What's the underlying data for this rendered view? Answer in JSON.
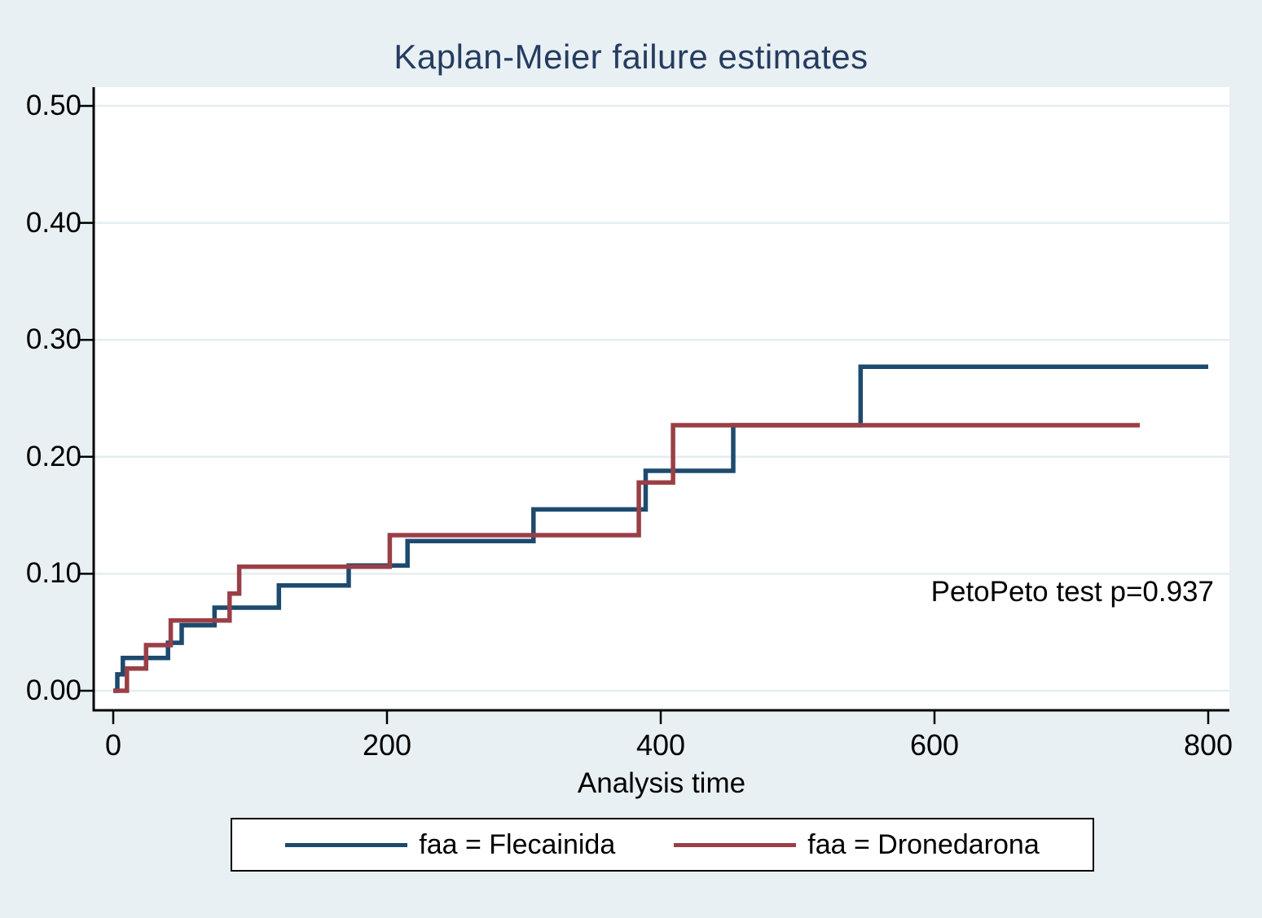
{
  "title": "Kaplan-Meier failure estimates",
  "annotation": "PetoPeto test p=0.937",
  "axes": {
    "x": {
      "label": "Analysis time",
      "tick_labels": [
        "0",
        "200",
        "400",
        "600",
        "800"
      ]
    },
    "y": {
      "tick_labels": [
        "0.00",
        "0.10",
        "0.20",
        "0.30",
        "0.40",
        "0.50"
      ]
    }
  },
  "legend": {
    "items": [
      {
        "label": "faa = Flecainida",
        "color": "#1d4a6e"
      },
      {
        "label": "faa = Dronedarona",
        "color": "#9a3f46"
      }
    ]
  },
  "colors": {
    "background": "#e9f0f3",
    "plot_background": "#ffffff",
    "gridline": "#e4edf0",
    "axis": "#000000",
    "title": "#253c61",
    "flecainida": "#1d4a6e",
    "dronedarona": "#9a3f46"
  },
  "chart_data": {
    "type": "line",
    "subtype": "step",
    "title": "Kaplan-Meier failure estimates",
    "xlabel": "Analysis time",
    "ylabel": "",
    "xlim": [
      0,
      800
    ],
    "ylim": [
      0,
      0.5
    ],
    "x_ticks": [
      0,
      200,
      400,
      600,
      800
    ],
    "y_ticks": [
      0,
      0.1,
      0.2,
      0.3,
      0.4,
      0.5
    ],
    "grid": true,
    "legend_position": "bottom",
    "annotation": "PetoPeto test p=0.937",
    "series": [
      {
        "name": "faa = Flecainida",
        "color": "#1d4a6e",
        "end_x": 800,
        "points": [
          [
            0,
            0
          ],
          [
            3,
            0.014
          ],
          [
            7,
            0.028
          ],
          [
            40,
            0.041
          ],
          [
            50,
            0.056
          ],
          [
            74,
            0.071
          ],
          [
            121,
            0.09
          ],
          [
            172,
            0.107
          ],
          [
            215,
            0.128
          ],
          [
            307,
            0.155
          ],
          [
            389,
            0.188
          ],
          [
            453,
            0.227
          ],
          [
            546,
            0.277
          ]
        ]
      },
      {
        "name": "faa = Dronedarona",
        "color": "#9a3f46",
        "end_x": 750,
        "points": [
          [
            0,
            0
          ],
          [
            10,
            0.019
          ],
          [
            24,
            0.039
          ],
          [
            42,
            0.06
          ],
          [
            85,
            0.083
          ],
          [
            92,
            0.106
          ],
          [
            202,
            0.133
          ],
          [
            384,
            0.178
          ],
          [
            409,
            0.227
          ]
        ]
      }
    ]
  }
}
